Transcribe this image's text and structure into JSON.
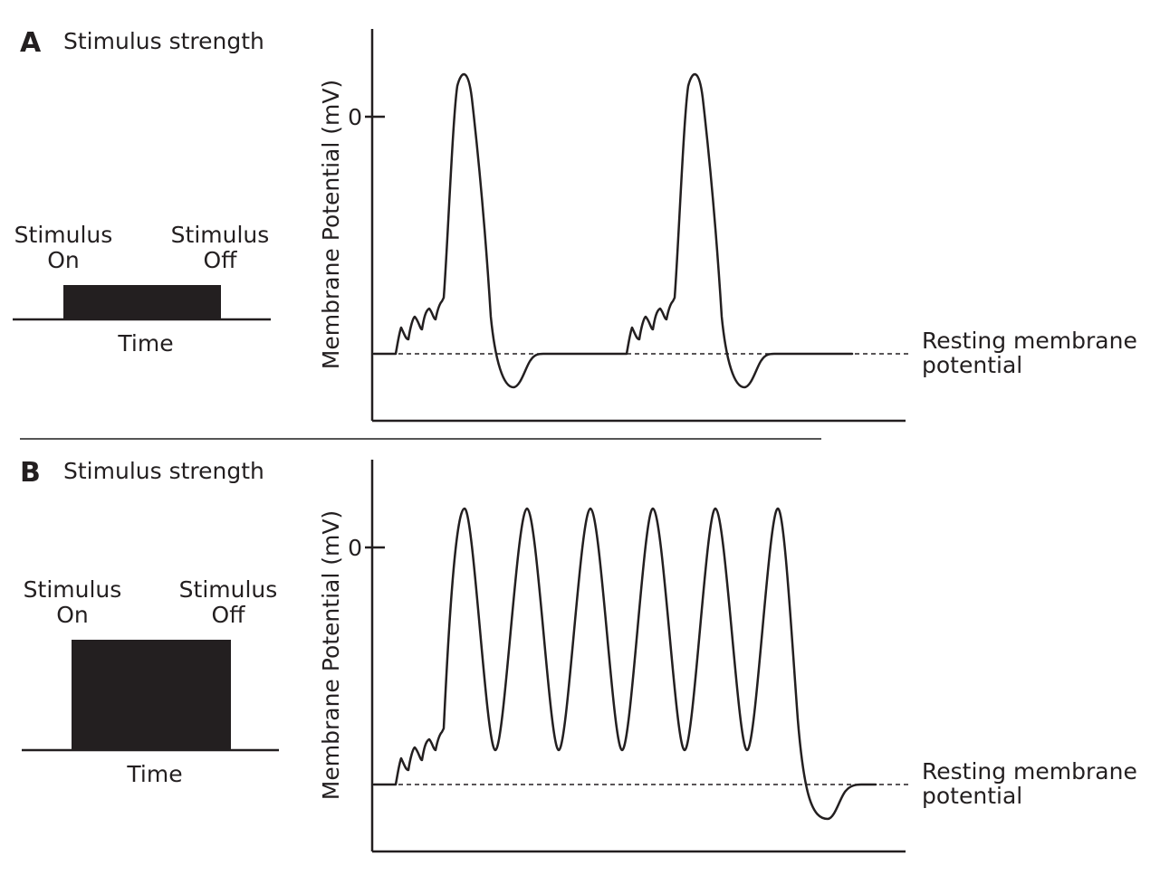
{
  "panels": [
    {
      "letter": "A",
      "title": "Stimulus strength",
      "stim_on_line1": "Stimulus",
      "stim_on_line2": "On",
      "stim_off_line1": "Stimulus",
      "stim_off_line2": "Off",
      "time_label": "Time",
      "ylabel": "Membrane Potential (mV)",
      "zero_tick": "0",
      "resting_line1": "Resting membrane",
      "resting_line2": "potential",
      "action_potentials": 2
    },
    {
      "letter": "B",
      "title": "Stimulus strength",
      "stim_on_line1": "Stimulus",
      "stim_on_line2": "On",
      "stim_off_line1": "Stimulus",
      "stim_off_line2": "Off",
      "time_label": "Time",
      "ylabel": "Membrane Potential (mV)",
      "zero_tick": "0",
      "resting_line1": "Resting membrane",
      "resting_line2": "potential",
      "action_potentials": 6
    }
  ],
  "colors": {
    "ink": "#231f20",
    "divider": "#555555",
    "background": "#ffffff"
  }
}
